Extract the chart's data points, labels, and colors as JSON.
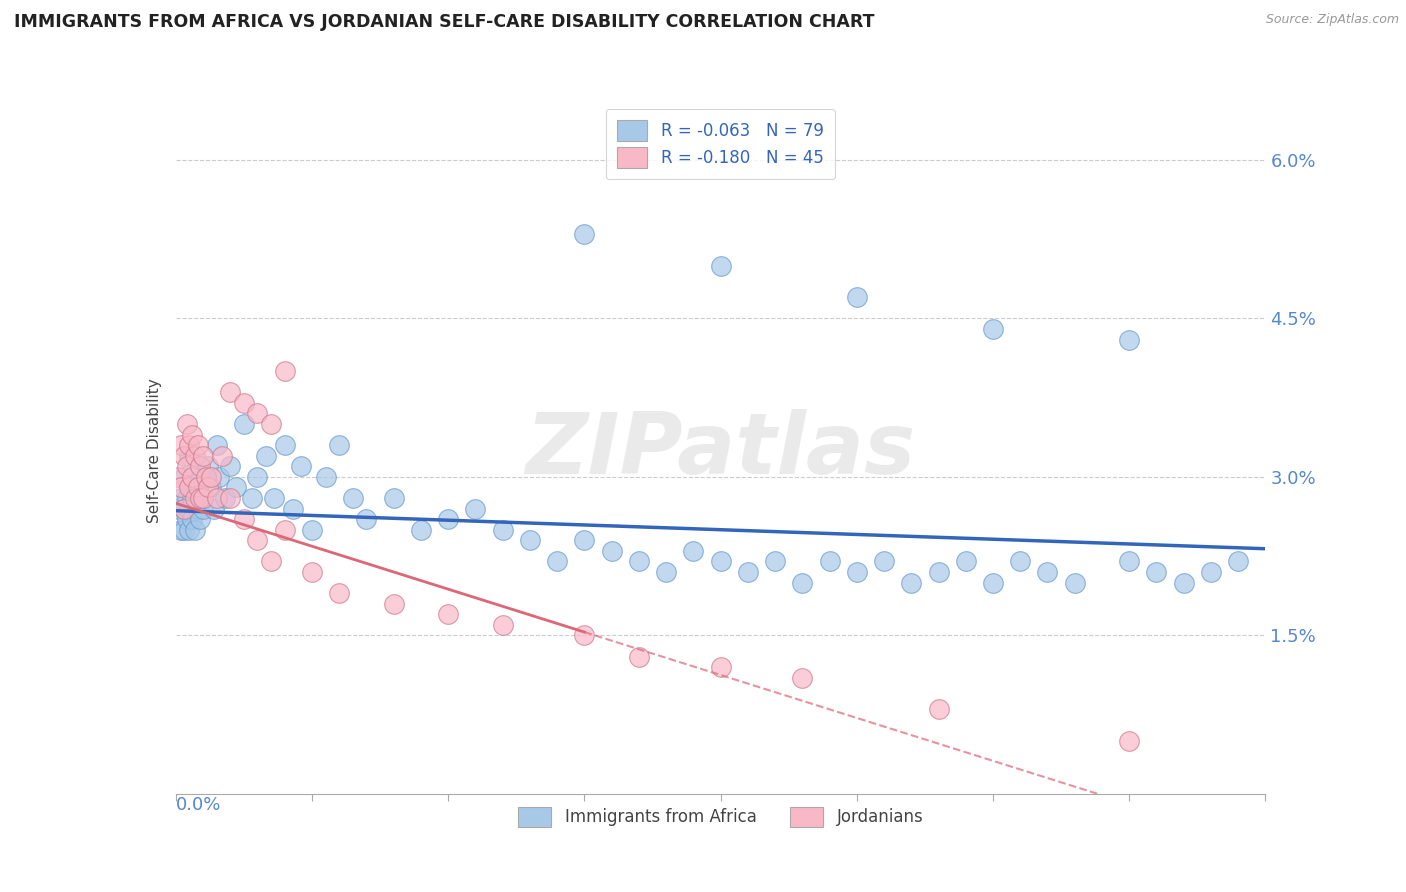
{
  "title": "IMMIGRANTS FROM AFRICA VS JORDANIAN SELF-CARE DISABILITY CORRELATION CHART",
  "source": "Source: ZipAtlas.com",
  "ylabel": "Self-Care Disability",
  "y_tick_labels": [
    "1.5%",
    "3.0%",
    "4.5%",
    "6.0%"
  ],
  "y_tick_values": [
    0.015,
    0.03,
    0.045,
    0.06
  ],
  "series_africa": {
    "color": "#a8c8e8",
    "edge_color": "#6699cc",
    "line_color": "#3366bb",
    "line_style": "solid",
    "R": -0.063,
    "N": 79
  },
  "series_jordan": {
    "color": "#f8b8c8",
    "edge_color": "#cc7788",
    "line_color": "#dd6677",
    "line_style": "dashed",
    "R": -0.18,
    "N": 45
  },
  "xlim": [
    0.0,
    0.4
  ],
  "ylim": [
    0.0,
    0.065
  ],
  "background_color": "#ffffff",
  "watermark": "ZIPatlas",
  "grid_color": "#cccccc",
  "africa_x": [
    0.001,
    0.002,
    0.002,
    0.003,
    0.003,
    0.003,
    0.004,
    0.004,
    0.005,
    0.005,
    0.005,
    0.006,
    0.006,
    0.007,
    0.007,
    0.008,
    0.008,
    0.009,
    0.009,
    0.01,
    0.01,
    0.011,
    0.012,
    0.013,
    0.014,
    0.015,
    0.016,
    0.018,
    0.02,
    0.022,
    0.025,
    0.028,
    0.03,
    0.033,
    0.036,
    0.04,
    0.043,
    0.046,
    0.05,
    0.055,
    0.06,
    0.065,
    0.07,
    0.08,
    0.09,
    0.1,
    0.11,
    0.12,
    0.13,
    0.14,
    0.15,
    0.16,
    0.17,
    0.18,
    0.19,
    0.2,
    0.21,
    0.22,
    0.23,
    0.24,
    0.25,
    0.26,
    0.27,
    0.28,
    0.29,
    0.3,
    0.31,
    0.32,
    0.33,
    0.35,
    0.36,
    0.37,
    0.38,
    0.39,
    0.15,
    0.2,
    0.25,
    0.3,
    0.35
  ],
  "africa_y": [
    0.027,
    0.028,
    0.025,
    0.03,
    0.027,
    0.025,
    0.028,
    0.026,
    0.032,
    0.027,
    0.025,
    0.028,
    0.026,
    0.029,
    0.025,
    0.028,
    0.027,
    0.03,
    0.026,
    0.028,
    0.027,
    0.03,
    0.031,
    0.029,
    0.027,
    0.033,
    0.03,
    0.028,
    0.031,
    0.029,
    0.035,
    0.028,
    0.03,
    0.032,
    0.028,
    0.033,
    0.027,
    0.031,
    0.025,
    0.03,
    0.033,
    0.028,
    0.026,
    0.028,
    0.025,
    0.026,
    0.027,
    0.025,
    0.024,
    0.022,
    0.024,
    0.023,
    0.022,
    0.021,
    0.023,
    0.022,
    0.021,
    0.022,
    0.02,
    0.022,
    0.021,
    0.022,
    0.02,
    0.021,
    0.022,
    0.02,
    0.022,
    0.021,
    0.02,
    0.022,
    0.021,
    0.02,
    0.021,
    0.022,
    0.053,
    0.05,
    0.047,
    0.044,
    0.043
  ],
  "jordan_x": [
    0.001,
    0.002,
    0.002,
    0.003,
    0.003,
    0.004,
    0.004,
    0.005,
    0.005,
    0.006,
    0.006,
    0.007,
    0.007,
    0.008,
    0.008,
    0.009,
    0.009,
    0.01,
    0.01,
    0.011,
    0.012,
    0.013,
    0.015,
    0.017,
    0.02,
    0.025,
    0.03,
    0.035,
    0.04,
    0.05,
    0.06,
    0.08,
    0.1,
    0.12,
    0.15,
    0.17,
    0.2,
    0.23,
    0.28,
    0.35,
    0.02,
    0.025,
    0.03,
    0.035,
    0.04
  ],
  "jordan_y": [
    0.03,
    0.033,
    0.029,
    0.032,
    0.027,
    0.035,
    0.031,
    0.033,
    0.029,
    0.034,
    0.03,
    0.032,
    0.028,
    0.033,
    0.029,
    0.031,
    0.028,
    0.032,
    0.028,
    0.03,
    0.029,
    0.03,
    0.028,
    0.032,
    0.028,
    0.026,
    0.024,
    0.022,
    0.025,
    0.021,
    0.019,
    0.018,
    0.017,
    0.016,
    0.015,
    0.013,
    0.012,
    0.011,
    0.008,
    0.005,
    0.038,
    0.037,
    0.036,
    0.035,
    0.04
  ]
}
